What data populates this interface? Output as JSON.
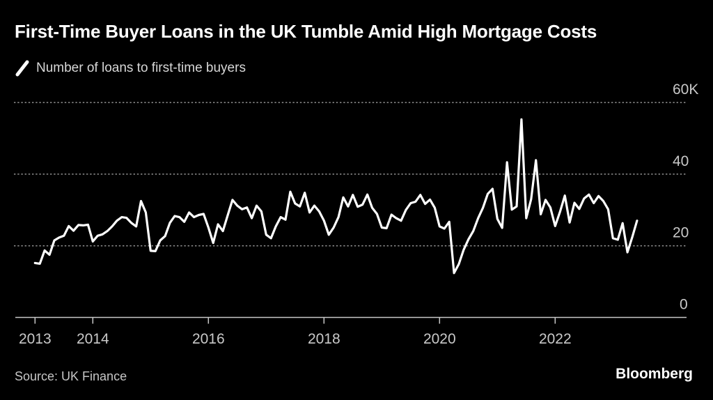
{
  "header": {
    "title": "First-Time Buyer Loans in the UK Tumble Amid High Mortgage Costs",
    "legend": {
      "marker": "diagonal-line-icon",
      "label": "Number of loans to first-time buyers"
    }
  },
  "footer": {
    "source": "Source: UK Finance",
    "brand": "Bloomberg"
  },
  "colors": {
    "background": "#000000",
    "title_text": "#ffffff",
    "legend_text": "#d7d7d7",
    "axis_text": "#c9c9c9",
    "gridline": "#8f8f8f",
    "axis_line": "#c9c9c9",
    "series_line": "#ffffff",
    "source_text": "#c6c6c6",
    "brand_text": "#ffffff"
  },
  "chart_data": {
    "type": "line",
    "title": "First-Time Buyer Loans in the UK Tumble Amid High Mortgage Costs",
    "xlabel": "",
    "ylabel": "Number of loans to first-time buyers (thousands)",
    "ylim": [
      0,
      60
    ],
    "grid": "dashed-horizontal",
    "grid_values": [
      20,
      40,
      60
    ],
    "legend_position": "top-left",
    "x_ticks": [
      {
        "label": "2013",
        "year": 2013
      },
      {
        "label": "2014",
        "year": 2014
      },
      {
        "label": "2016",
        "year": 2016
      },
      {
        "label": "2018",
        "year": 2018
      },
      {
        "label": "2020",
        "year": 2020
      },
      {
        "label": "2022",
        "year": 2022
      }
    ],
    "y_ticks": [
      {
        "label": "60K",
        "value": 60
      },
      {
        "label": "40",
        "value": 40
      },
      {
        "label": "20",
        "value": 20
      },
      {
        "label": "0",
        "value": 0
      }
    ],
    "series": [
      {
        "name": "Number of loans to first-time buyers",
        "unit": "thousands of loans per month",
        "start": "2013-01",
        "end": "2023-06",
        "frequency": "monthly",
        "values": [
          15.2,
          15.0,
          18.7,
          17.5,
          21.5,
          22.3,
          22.8,
          25.5,
          24.2,
          25.8,
          25.7,
          25.9,
          21.2,
          22.8,
          23.2,
          24.1,
          25.4,
          27.0,
          28.0,
          27.8,
          26.4,
          25.4,
          32.5,
          29.3,
          18.6,
          18.5,
          21.5,
          22.7,
          26.4,
          28.3,
          28.0,
          26.7,
          29.3,
          28.0,
          28.6,
          28.9,
          25.1,
          20.8,
          26.0,
          24.1,
          28.5,
          32.8,
          31.2,
          30.2,
          30.7,
          27.7,
          31.2,
          29.6,
          23.1,
          22.1,
          25.4,
          28.0,
          27.3,
          35.1,
          31.8,
          31.0,
          34.8,
          29.3,
          31.2,
          29.6,
          27.0,
          23.1,
          25.1,
          28.0,
          33.5,
          31.0,
          34.2,
          30.9,
          31.5,
          34.3,
          30.6,
          28.9,
          25.1,
          24.9,
          28.7,
          27.7,
          27.0,
          30.0,
          31.9,
          32.3,
          34.2,
          31.7,
          32.9,
          30.6,
          25.4,
          24.8,
          26.7,
          12.4,
          14.9,
          18.9,
          21.8,
          24.1,
          27.7,
          30.6,
          34.5,
          35.9,
          27.5,
          25.0,
          43.3,
          30.1,
          31.0,
          55.3,
          27.7,
          33.0,
          43.9,
          28.8,
          32.8,
          30.7,
          25.5,
          29.5,
          34.0,
          26.5,
          32.0,
          30.3,
          33.2,
          34.3,
          31.9,
          33.9,
          32.5,
          30.2,
          22.1,
          21.7,
          26.3,
          18.2,
          22.4,
          27.0
        ]
      }
    ]
  }
}
